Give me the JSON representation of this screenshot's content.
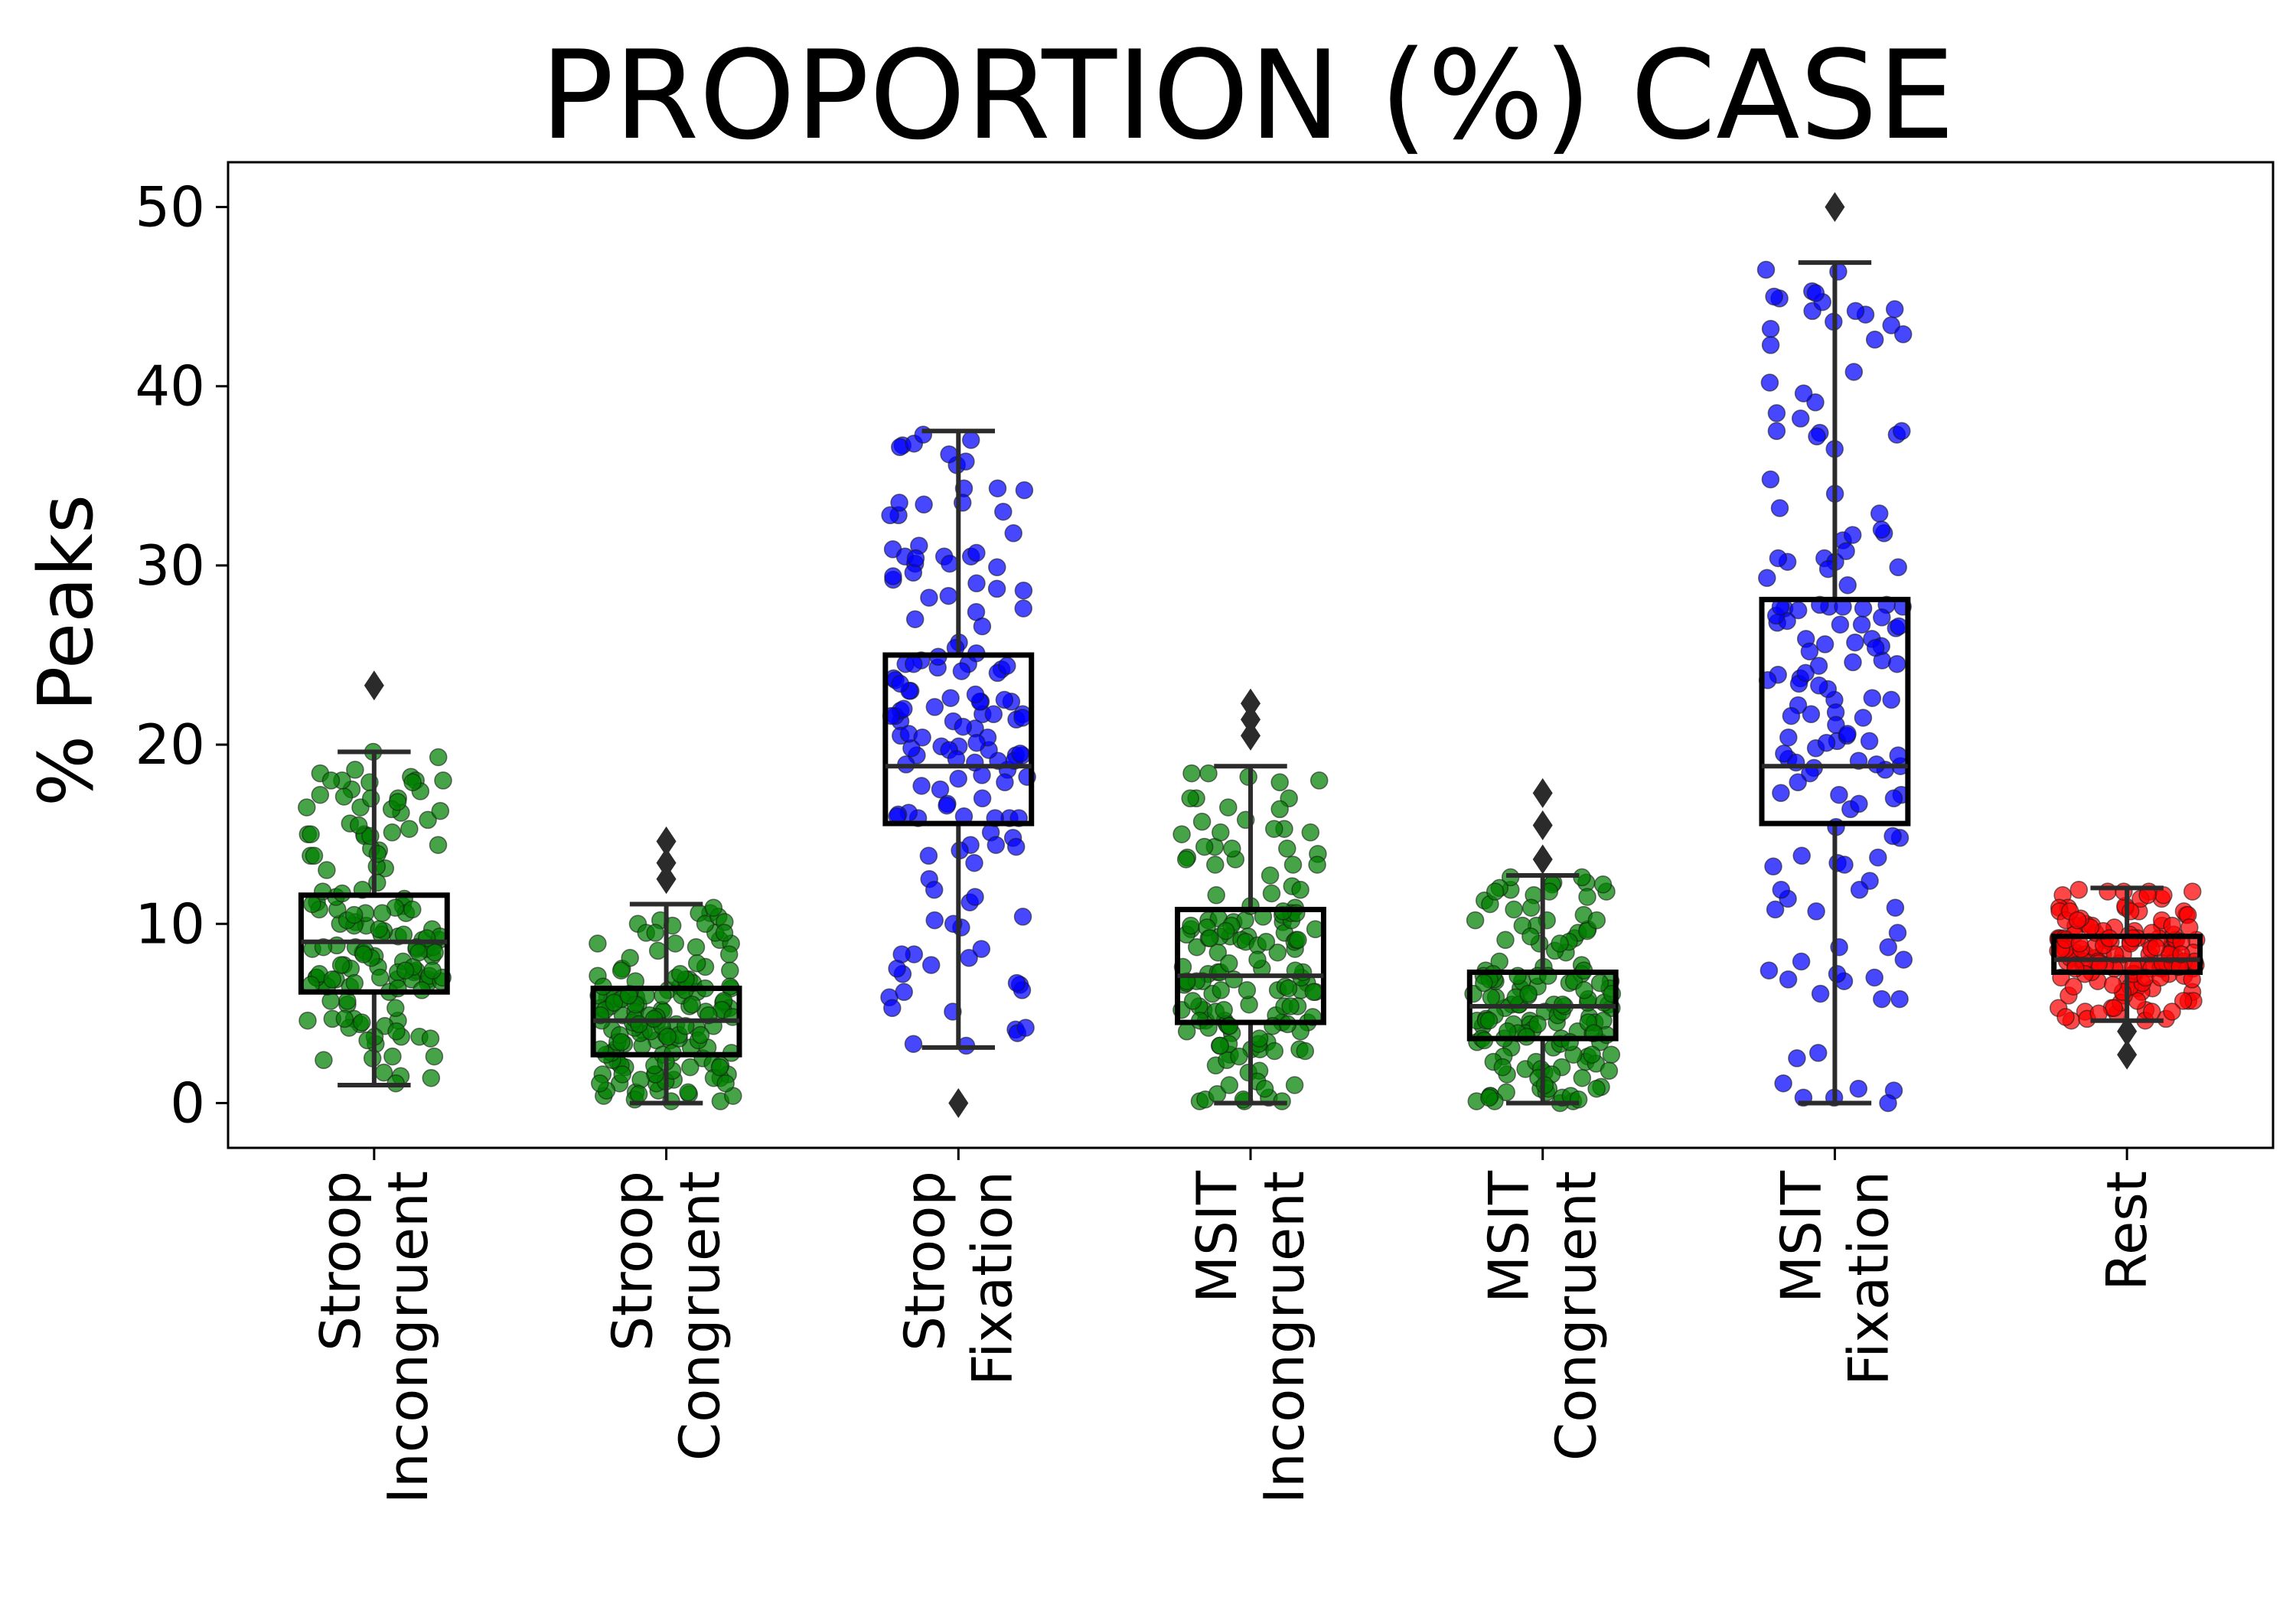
{
  "chart_data": {
    "type": "box",
    "title": "PROPORTION (%) CASE",
    "xlabel": "",
    "ylabel": "% Peaks",
    "ylim": [
      -2.5,
      52.5
    ],
    "yticks": [
      0,
      10,
      20,
      30,
      40,
      50
    ],
    "grid": false,
    "categories": [
      [
        "Stroop",
        "Incongruent"
      ],
      [
        "Stroop",
        "Congruent"
      ],
      [
        "Stroop",
        "Fixation"
      ],
      [
        "MSIT",
        "Incongruent"
      ],
      [
        "MSIT",
        "Congruent"
      ],
      [
        "MSIT",
        "Fixation"
      ],
      [
        "Rest"
      ]
    ],
    "boxes": [
      {
        "whisker_low": 1,
        "q1": 6.2,
        "median": 9,
        "q3": 11.6,
        "whisker_high": 19.6,
        "outliers": [
          23.3
        ],
        "point_color": "#008000",
        "point_min": 0.9,
        "point_max": 23.3
      },
      {
        "whisker_low": 0,
        "q1": 2.7,
        "median": 4.6,
        "q3": 6.4,
        "whisker_high": 11.1,
        "outliers": [
          12.5,
          13.4,
          14.6
        ],
        "point_color": "#008000",
        "point_min": 0,
        "point_max": 14.6
      },
      {
        "whisker_low": 3.1,
        "q1": 15.6,
        "median": 18.8,
        "q3": 25,
        "whisker_high": 37.5,
        "outliers": [
          0
        ],
        "point_color": "#0000ff",
        "point_min": 0,
        "point_max": 37.5
      },
      {
        "whisker_low": 0,
        "q1": 4.5,
        "median": 7.1,
        "q3": 10.8,
        "whisker_high": 18.8,
        "outliers": [
          20.5,
          21.4,
          22.3
        ],
        "point_color": "#008000",
        "point_min": 0,
        "point_max": 22.3
      },
      {
        "whisker_low": 0,
        "q1": 3.6,
        "median": 5.4,
        "q3": 7.3,
        "whisker_high": 12.7,
        "outliers": [
          13.6,
          15.5,
          17.3
        ],
        "point_color": "#008000",
        "point_min": 0,
        "point_max": 17.3
      },
      {
        "whisker_low": 0,
        "q1": 15.6,
        "median": 18.8,
        "q3": 28.1,
        "whisker_high": 46.9,
        "outliers": [
          50
        ],
        "point_color": "#0000ff",
        "point_min": 0,
        "point_max": 50
      },
      {
        "whisker_low": 4.6,
        "q1": 7.3,
        "median": 8,
        "q3": 9.3,
        "whisker_high": 12,
        "outliers": [
          2.7,
          4
        ],
        "point_color": "#ff0000",
        "point_min": 2.7,
        "point_max": 12
      }
    ]
  }
}
